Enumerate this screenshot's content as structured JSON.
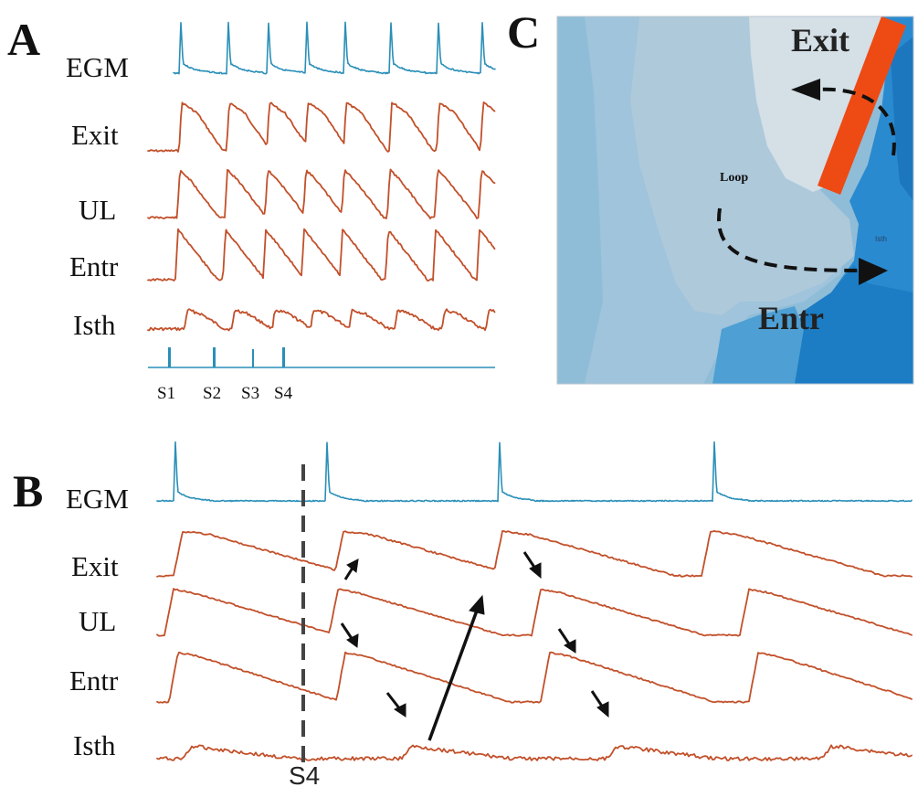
{
  "panels": {
    "A": {
      "letter": "A",
      "traces": [
        "EGM",
        "Exit",
        "UL",
        "Entr",
        "Isth"
      ],
      "stimuli": [
        "S1",
        "S2",
        "S3",
        "S4"
      ]
    },
    "B": {
      "letter": "B",
      "traces": [
        "EGM",
        "Exit",
        "UL",
        "Entr",
        "Isth"
      ],
      "marker": "S4"
    },
    "C": {
      "letter": "C",
      "exit_label": "Exit",
      "entr_label": "Entr",
      "loop_label": "Loop",
      "isth_label": "Isth"
    }
  },
  "colors": {
    "egm": "#2a8fb8",
    "vm": "#c2502a",
    "block": "#ee4a14",
    "map_light": "#d2dde6",
    "map_mid": "#9ec2d8",
    "map_dark": "#1f7fc6"
  }
}
